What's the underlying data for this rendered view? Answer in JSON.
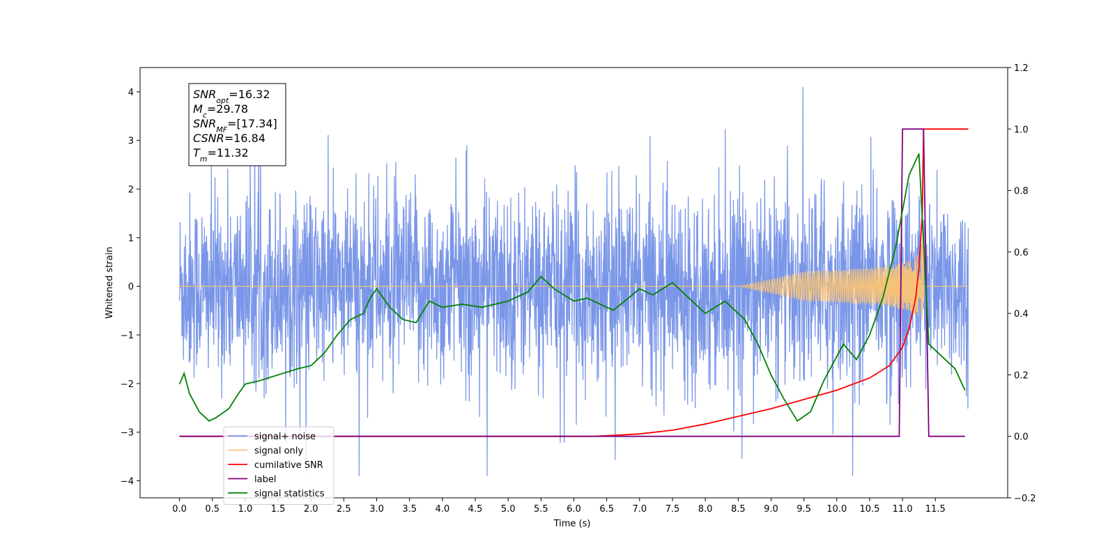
{
  "chart_data": {
    "type": "line",
    "xlabel": "Time (s)",
    "ylabel": "Whitened strain",
    "xlim": [
      -0.6,
      12.6
    ],
    "ylim": [
      -4.35,
      4.5
    ],
    "y2lim": [
      -0.2,
      1.2
    ],
    "x_ticks": [
      "0.0",
      "0.5",
      "1.0",
      "1.5",
      "2.0",
      "2.5",
      "3.0",
      "3.5",
      "4.0",
      "4.5",
      "5.0",
      "5.5",
      "6.0",
      "6.5",
      "7.0",
      "7.5",
      "8.0",
      "8.5",
      "9.0",
      "9.5",
      "10.0",
      "10.5",
      "11.0",
      "11.5"
    ],
    "y_ticks": [
      "4",
      "3",
      "2",
      "1",
      "0",
      "−1",
      "−2",
      "−3",
      "−4"
    ],
    "y2_ticks": [
      "1.2",
      "1.0",
      "0.8",
      "0.6",
      "0.4",
      "0.2",
      "0.0",
      "−0.2"
    ],
    "annotation": [
      {
        "sym": "SNR",
        "sub": "opt",
        "val": "=16.32"
      },
      {
        "sym": "M",
        "sub": "c",
        "val": "=29.78"
      },
      {
        "sym": "SNR",
        "sub": "MF",
        "val": "=[17.34]"
      },
      {
        "sym": "CSNR",
        "sub": "",
        "val": "=16.84"
      },
      {
        "sym": "T",
        "sub": "m",
        "val": "=11.32"
      }
    ],
    "legend": {
      "placement": "lower-left",
      "entries": [
        {
          "label": "signal+ noise",
          "color": "#7a96e8"
        },
        {
          "label": "signal only",
          "color": "#f5c27a"
        },
        {
          "label": "cumilative SNR",
          "color": "#ff0000"
        },
        {
          "label": "label",
          "color": "#800080"
        },
        {
          "label": "signal statistics",
          "color": "#008000"
        }
      ]
    },
    "series": [
      {
        "name": "signal+ noise",
        "axis": "left",
        "color": "#7a96e8",
        "style": "noise",
        "x_range": [
          0,
          12
        ],
        "amplitude_range": [
          -3.9,
          4.1
        ]
      },
      {
        "name": "signal only",
        "axis": "left",
        "color": "#f5c27a",
        "style": "chirp",
        "merger_time": 11.32,
        "peak_amplitude": 1.6
      },
      {
        "name": "cumilative SNR",
        "axis": "right",
        "color": "#ff0000",
        "x": [
          0,
          6.3,
          6.5,
          7.0,
          7.5,
          8.0,
          8.5,
          9.0,
          9.5,
          10.0,
          10.5,
          10.8,
          11.0,
          11.1,
          11.2,
          11.25,
          11.3,
          11.32,
          12.0
        ],
        "y": [
          0.0,
          0.0,
          0.002,
          0.008,
          0.02,
          0.04,
          0.065,
          0.09,
          0.12,
          0.15,
          0.19,
          0.23,
          0.29,
          0.35,
          0.45,
          0.55,
          0.72,
          1.0,
          1.0
        ]
      },
      {
        "name": "label",
        "axis": "right",
        "color": "#800080",
        "x": [
          0,
          10.95,
          11.0,
          11.3,
          11.32,
          11.4,
          11.95
        ],
        "y": [
          0,
          0,
          1.0,
          1.0,
          1.0,
          0,
          0
        ]
      },
      {
        "name": "signal statistics",
        "axis": "right",
        "color": "#008000",
        "x": [
          0,
          0.07,
          0.15,
          0.3,
          0.45,
          0.55,
          0.75,
          0.9,
          1.0,
          1.2,
          1.5,
          1.8,
          2.0,
          2.2,
          2.4,
          2.6,
          2.8,
          2.9,
          3.0,
          3.2,
          3.4,
          3.6,
          3.8,
          4.0,
          4.3,
          4.6,
          5.0,
          5.3,
          5.5,
          5.7,
          6.0,
          6.2,
          6.6,
          7.0,
          7.2,
          7.5,
          7.8,
          8.0,
          8.3,
          8.6,
          8.8,
          9.0,
          9.2,
          9.4,
          9.6,
          9.8,
          10.1,
          10.3,
          10.5,
          10.7,
          10.9,
          11.1,
          11.25,
          11.4,
          11.6,
          11.8,
          11.95
        ],
        "y": [
          0.17,
          0.205,
          0.14,
          0.08,
          0.05,
          0.06,
          0.09,
          0.14,
          0.17,
          0.18,
          0.2,
          0.22,
          0.23,
          0.27,
          0.33,
          0.38,
          0.4,
          0.45,
          0.48,
          0.42,
          0.38,
          0.37,
          0.44,
          0.42,
          0.43,
          0.42,
          0.44,
          0.47,
          0.52,
          0.48,
          0.44,
          0.45,
          0.41,
          0.48,
          0.46,
          0.5,
          0.44,
          0.4,
          0.44,
          0.38,
          0.3,
          0.2,
          0.12,
          0.05,
          0.08,
          0.18,
          0.3,
          0.25,
          0.33,
          0.45,
          0.62,
          0.85,
          0.92,
          0.3,
          0.26,
          0.22,
          0.15
        ]
      }
    ]
  }
}
